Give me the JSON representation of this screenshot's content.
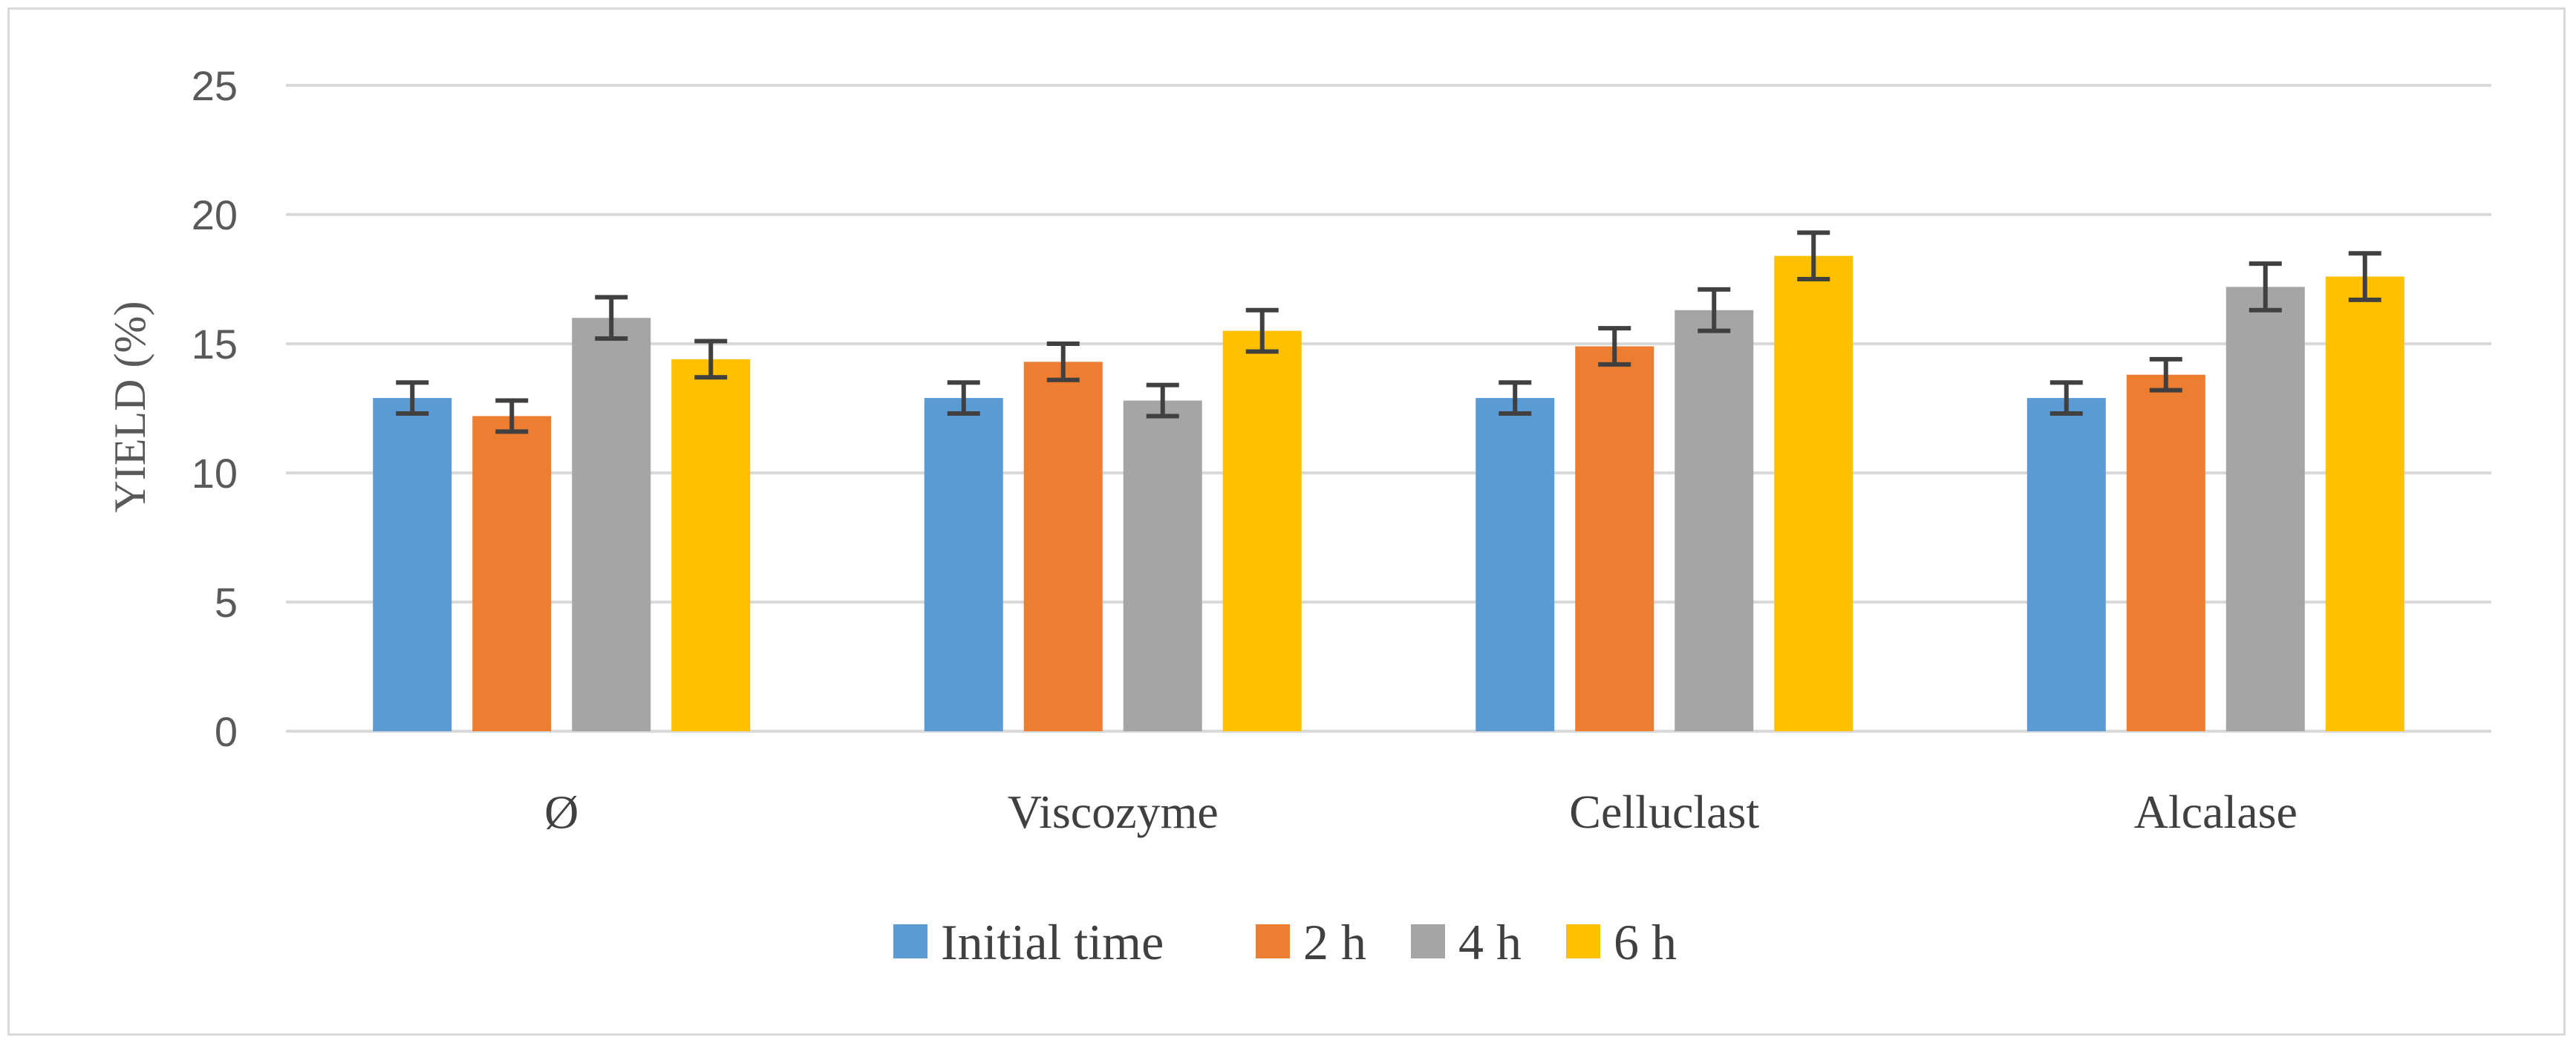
{
  "chart_data": {
    "type": "bar",
    "title": "",
    "xlabel": "",
    "ylabel": "YIELD (%)",
    "ylim": [
      0,
      25
    ],
    "yticks": [
      0,
      5,
      10,
      15,
      20,
      25
    ],
    "grid": true,
    "legend_position": "bottom",
    "categories": [
      "Ø",
      "Viscozyme",
      "Celluclast",
      "Alcalase"
    ],
    "series": [
      {
        "name": "Initial time",
        "color": "#5b9bd5",
        "values": [
          12.9,
          12.9,
          12.9,
          12.9
        ],
        "errors": [
          0.6,
          0.6,
          0.6,
          0.6
        ]
      },
      {
        "name": "2 h",
        "color": "#ed7d31",
        "values": [
          12.2,
          14.3,
          14.9,
          13.8
        ],
        "errors": [
          0.6,
          0.7,
          0.7,
          0.6
        ]
      },
      {
        "name": "4 h",
        "color": "#a5a5a5",
        "values": [
          16.0,
          12.8,
          16.3,
          17.2
        ],
        "errors": [
          0.8,
          0.6,
          0.8,
          0.9
        ]
      },
      {
        "name": "6 h",
        "color": "#ffc000",
        "values": [
          14.4,
          15.5,
          18.4,
          17.6
        ],
        "errors": [
          0.7,
          0.8,
          0.9,
          0.9
        ]
      }
    ]
  }
}
